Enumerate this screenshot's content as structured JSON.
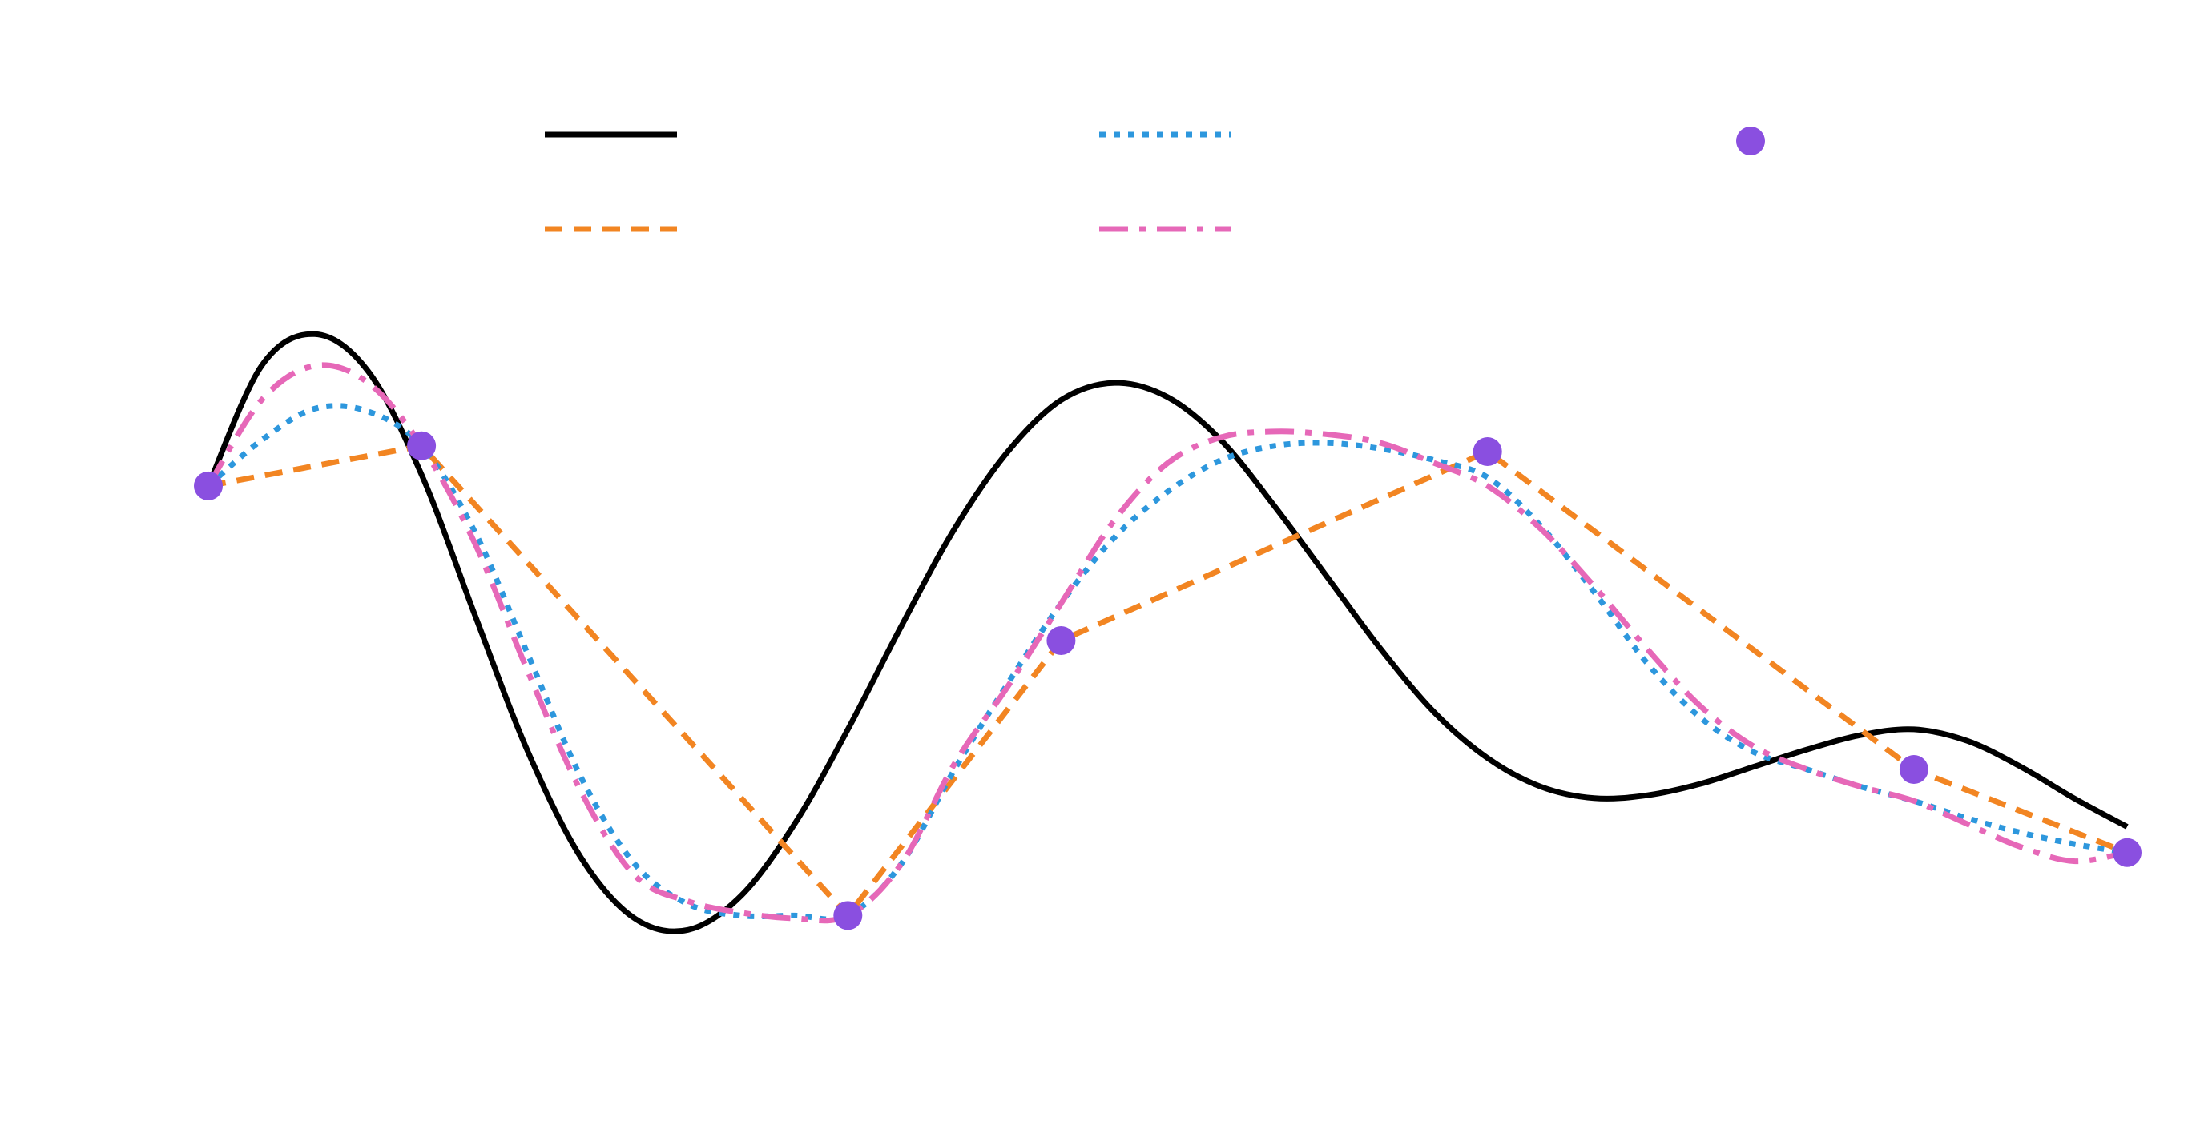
{
  "chart_data": {
    "type": "line",
    "title": "",
    "xlabel": "",
    "ylabel": "",
    "x_range": [
      0,
      9
    ],
    "y_range": [
      -1.3,
      1.3
    ],
    "grid": false,
    "axes_visible": false,
    "legend": {
      "placement": "top",
      "columns": 3,
      "labels_visible": false
    },
    "series": [
      {
        "kind": "line",
        "color": "#000000",
        "style": "solid",
        "x": [
          0,
          0.25,
          0.5,
          0.75,
          1,
          1.25,
          1.5,
          1.75,
          2,
          2.25,
          2.5,
          2.75,
          3,
          3.25,
          3.5,
          3.75,
          4,
          4.25,
          4.5,
          4.75,
          5,
          5.25,
          5.5,
          5.75,
          6,
          6.25,
          6.5,
          6.75,
          7,
          7.25,
          7.5,
          7.75,
          8,
          8.25,
          8.5,
          8.75,
          9
        ],
        "y": [
          0.47,
          0.89,
          1.0,
          0.87,
          0.51,
          0.02,
          -0.46,
          -0.83,
          -1.04,
          -1.08,
          -0.96,
          -0.71,
          -0.38,
          -0.02,
          0.32,
          0.59,
          0.77,
          0.83,
          0.78,
          0.63,
          0.4,
          0.15,
          -0.1,
          -0.32,
          -0.48,
          -0.58,
          -0.62,
          -0.61,
          -0.57,
          -0.51,
          -0.45,
          -0.4,
          -0.38,
          -0.42,
          -0.51,
          -0.62,
          -0.72
        ]
      },
      {
        "kind": "line",
        "color": "#f28522",
        "style": "dashed",
        "x": [
          0,
          1,
          3,
          4,
          6,
          8,
          9
        ],
        "y": [
          0.47,
          0.61,
          -1.03,
          -0.07,
          0.59,
          -0.52,
          -0.81
        ]
      },
      {
        "kind": "line",
        "color": "#2d97dd",
        "style": "dotted",
        "x": [
          0,
          0.25,
          0.5,
          0.75,
          1,
          1.25,
          1.5,
          1.75,
          2,
          2.25,
          2.5,
          2.75,
          3,
          3.25,
          3.5,
          3.75,
          4,
          4.25,
          4.5,
          4.75,
          5,
          5.25,
          5.5,
          5.75,
          6,
          6.25,
          6.5,
          6.75,
          7,
          7.25,
          7.5,
          7.75,
          8,
          8.25,
          8.5,
          8.75,
          9
        ],
        "y": [
          0.47,
          0.63,
          0.74,
          0.73,
          0.61,
          0.31,
          -0.12,
          -0.55,
          -0.85,
          -0.99,
          -1.03,
          -1.03,
          -1.03,
          -0.85,
          -0.52,
          -0.22,
          0.06,
          0.29,
          0.45,
          0.56,
          0.61,
          0.62,
          0.6,
          0.56,
          0.5,
          0.33,
          0.1,
          -0.15,
          -0.34,
          -0.46,
          -0.52,
          -0.58,
          -0.63,
          -0.69,
          -0.74,
          -0.78,
          -0.81
        ]
      },
      {
        "kind": "line",
        "color": "#e668b8",
        "style": "dashdot",
        "x": [
          0,
          0.25,
          0.5,
          0.75,
          1,
          1.25,
          1.5,
          1.75,
          2,
          2.25,
          2.5,
          2.75,
          3,
          3.25,
          3.5,
          3.75,
          4,
          4.25,
          4.5,
          4.75,
          5,
          5.25,
          5.5,
          5.75,
          6,
          6.25,
          6.5,
          6.75,
          7,
          7.25,
          7.5,
          7.75,
          8,
          8.25,
          8.5,
          8.75,
          9
        ],
        "y": [
          0.47,
          0.77,
          0.89,
          0.83,
          0.61,
          0.27,
          -0.18,
          -0.6,
          -0.89,
          -0.98,
          -1.02,
          -1.04,
          -1.03,
          -0.85,
          -0.5,
          -0.23,
          0.06,
          0.35,
          0.55,
          0.64,
          0.66,
          0.65,
          0.62,
          0.55,
          0.47,
          0.32,
          0.12,
          -0.1,
          -0.3,
          -0.44,
          -0.52,
          -0.58,
          -0.63,
          -0.71,
          -0.79,
          -0.84,
          -0.81
        ]
      },
      {
        "kind": "scatter",
        "color": "#8a4fe0",
        "x": [
          0,
          1,
          3,
          4,
          6,
          8,
          9
        ],
        "y": [
          0.47,
          0.61,
          -1.03,
          -0.07,
          0.59,
          -0.52,
          -0.81
        ]
      }
    ]
  }
}
